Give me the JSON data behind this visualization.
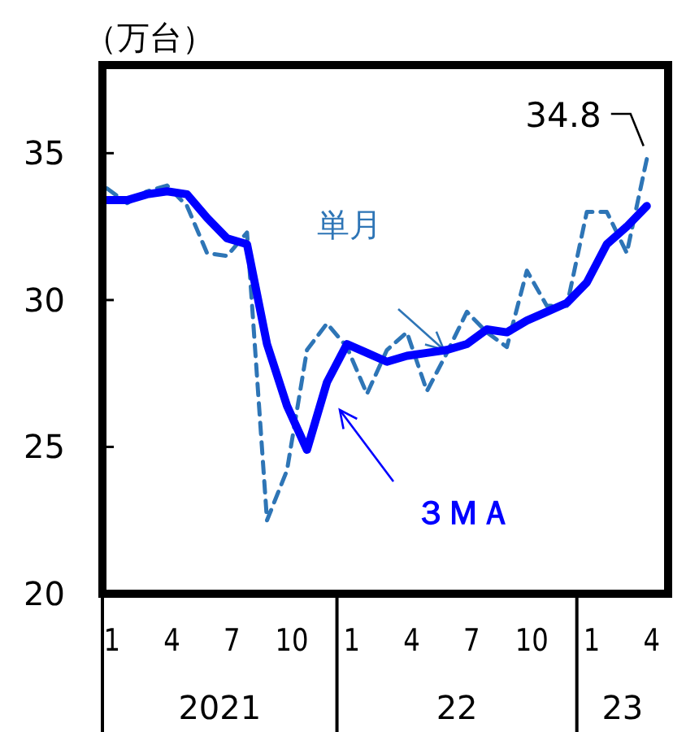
{
  "chart_data": {
    "type": "line",
    "ylabel": "（万台）",
    "x": [
      "2021-01",
      "2021-02",
      "2021-03",
      "2021-04",
      "2021-05",
      "2021-06",
      "2021-07",
      "2021-08",
      "2021-09",
      "2021-10",
      "2021-11",
      "2021-12",
      "2022-01",
      "2022-02",
      "2022-03",
      "2022-04",
      "2022-05",
      "2022-06",
      "2022-07",
      "2022-08",
      "2022-09",
      "2022-10",
      "2022-11",
      "2022-12",
      "2023-01",
      "2023-02",
      "2023-03",
      "2023-04"
    ],
    "series": [
      {
        "name": "単月",
        "color": "#2e75b6",
        "line_style": "dashed",
        "values": [
          33.8,
          33.3,
          33.7,
          33.9,
          33.2,
          31.6,
          31.5,
          32.3,
          22.5,
          24.2,
          28.3,
          29.2,
          28.4,
          26.8,
          28.3,
          28.9,
          26.9,
          28.2,
          29.6,
          28.9,
          28.4,
          31.0,
          29.8,
          29.8,
          33.0,
          33.0,
          31.6,
          34.8
        ]
      },
      {
        "name": "３ＭＡ",
        "color": "#0000ff",
        "line_style": "solid",
        "values": [
          33.4,
          33.4,
          33.6,
          33.7,
          33.6,
          32.8,
          32.1,
          31.9,
          28.5,
          26.4,
          24.9,
          27.2,
          28.5,
          28.2,
          27.9,
          28.1,
          28.2,
          28.3,
          28.5,
          29.0,
          28.9,
          29.3,
          29.6,
          29.9,
          30.6,
          31.9,
          32.5,
          33.2
        ]
      }
    ],
    "xlim": [
      "2020-12-24",
      "2023-05-03"
    ],
    "xticks": [
      {
        "value": "2021-01",
        "label": "1"
      },
      {
        "value": "2021-04",
        "label": "4"
      },
      {
        "value": "2021-07",
        "label": "7"
      },
      {
        "value": "2021-10",
        "label": "10"
      },
      {
        "value": "2022-01",
        "label": "1"
      },
      {
        "value": "2022-04",
        "label": "4"
      },
      {
        "value": "2022-07",
        "label": "7"
      },
      {
        "value": "2022-10",
        "label": "10"
      },
      {
        "value": "2023-01",
        "label": "1"
      },
      {
        "value": "2023-04",
        "label": "4"
      }
    ],
    "ylim": [
      20,
      38
    ],
    "yticks": [
      20,
      25,
      30,
      35
    ],
    "annotations": [
      {
        "text": "34.8",
        "x": "2023-04",
        "y": 34.8
      },
      "2021",
      "22",
      "23"
    ],
    "grid": false,
    "legend": false,
    "marker": "none"
  }
}
